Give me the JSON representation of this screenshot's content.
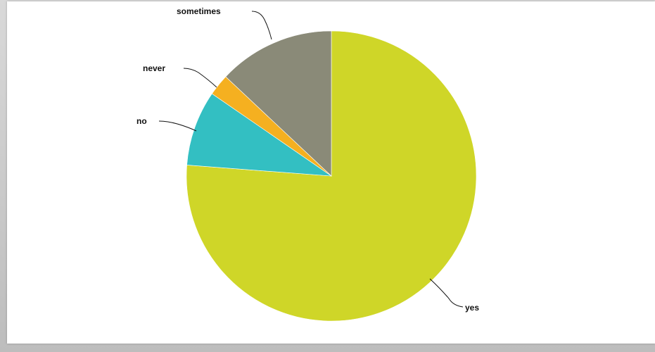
{
  "chart_data": {
    "type": "pie",
    "title": "",
    "start": "12 o'clock",
    "direction": "clockwise",
    "slices": [
      {
        "label": "yes",
        "value": 76.2,
        "color": "#cfd628"
      },
      {
        "label": "no",
        "value": 8.4,
        "color": "#33bfc2"
      },
      {
        "label": "never",
        "value": 2.4,
        "color": "#f5b020"
      },
      {
        "label": "sometimes",
        "value": 13.0,
        "color": "#8a8a78"
      }
    ]
  }
}
